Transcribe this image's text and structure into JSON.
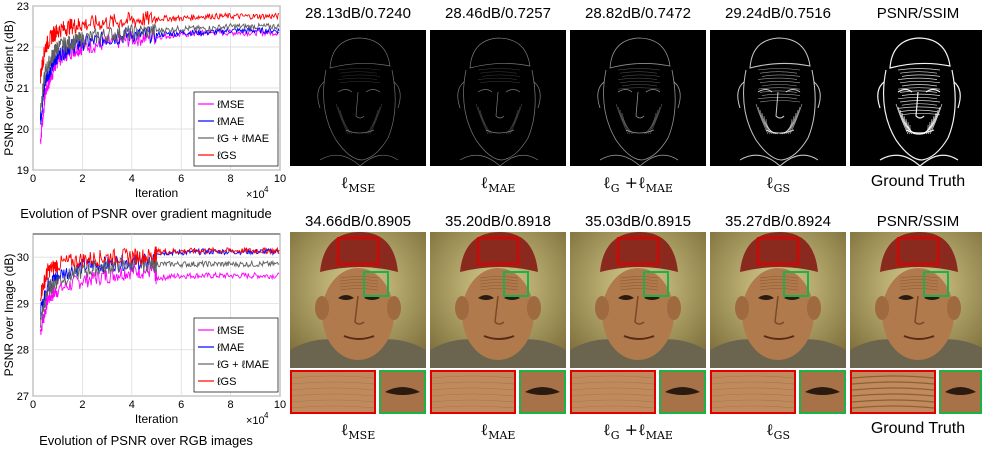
{
  "chart_data": [
    {
      "type": "line",
      "ylabel": "PSNR over Gradient (dB)",
      "xlabel": "Iteration",
      "x_multiplier": "×10",
      "x_exponent": "4",
      "xlim": [
        0,
        10
      ],
      "ylim": [
        19,
        23
      ],
      "xticks": [
        "0",
        "2",
        "4",
        "6",
        "8",
        "10"
      ],
      "yticks": [
        "19",
        "20",
        "21",
        "22",
        "23"
      ],
      "legend_position": "lower-right",
      "grid": true,
      "series": [
        {
          "name": "ℓMSE",
          "color": "#ff00ff",
          "x": [
            0.3,
            0.5,
            0.8,
            1.0,
            1.5,
            2.0,
            3.0,
            4.0,
            5.0,
            6.0,
            7.0,
            8.0,
            9.0,
            10.0
          ],
          "y": [
            19.7,
            20.9,
            21.4,
            21.7,
            21.9,
            22.0,
            22.1,
            22.2,
            22.25,
            22.3,
            22.35,
            22.35,
            22.35,
            22.35
          ]
        },
        {
          "name": "ℓMAE",
          "color": "#0000ff",
          "x": [
            0.3,
            0.5,
            0.8,
            1.0,
            1.5,
            2.0,
            3.0,
            4.0,
            5.0,
            6.0,
            7.0,
            8.0,
            9.0,
            10.0
          ],
          "y": [
            20.2,
            21.2,
            21.6,
            21.8,
            22.0,
            22.1,
            22.2,
            22.3,
            22.3,
            22.35,
            22.35,
            22.4,
            22.4,
            22.4
          ]
        },
        {
          "name": "ℓG + ℓMAE",
          "color": "#606060",
          "x": [
            0.3,
            0.5,
            0.8,
            1.0,
            1.5,
            2.0,
            3.0,
            4.0,
            5.0,
            6.0,
            7.0,
            8.0,
            9.0,
            10.0
          ],
          "y": [
            20.5,
            21.4,
            21.8,
            22.0,
            22.1,
            22.2,
            22.3,
            22.35,
            22.4,
            22.45,
            22.45,
            22.5,
            22.5,
            22.5
          ]
        },
        {
          "name": "ℓGS",
          "color": "#ff0000",
          "x": [
            0.3,
            0.5,
            0.8,
            1.0,
            1.5,
            2.0,
            3.0,
            4.0,
            5.0,
            6.0,
            7.0,
            8.0,
            9.0,
            10.0
          ],
          "y": [
            21.3,
            22.0,
            22.3,
            22.4,
            22.5,
            22.55,
            22.6,
            22.65,
            22.7,
            22.7,
            22.75,
            22.75,
            22.75,
            22.75
          ]
        }
      ]
    },
    {
      "type": "line",
      "ylabel": "PSNR over Image (dB)",
      "xlabel": "Iteration",
      "x_multiplier": "×10",
      "x_exponent": "4",
      "xlim": [
        0,
        10
      ],
      "ylim": [
        27,
        30.5
      ],
      "xticks": [
        "0",
        "2",
        "4",
        "6",
        "8",
        "10"
      ],
      "yticks": [
        "27",
        "28",
        "29",
        "30"
      ],
      "legend_position": "lower-right",
      "grid": true,
      "series": [
        {
          "name": "ℓMSE",
          "color": "#ff00ff",
          "x": [
            0.3,
            0.6,
            1.0,
            2.0,
            3.0,
            4.0,
            4.9,
            5.0,
            6.0,
            7.0,
            8.0,
            9.0,
            10.0
          ],
          "y": [
            28.4,
            29.1,
            29.3,
            29.5,
            29.6,
            29.7,
            29.7,
            29.55,
            29.6,
            29.6,
            29.6,
            29.6,
            29.6
          ]
        },
        {
          "name": "ℓMAE",
          "color": "#0000ff",
          "x": [
            0.3,
            0.6,
            1.0,
            2.0,
            3.0,
            4.0,
            4.9,
            5.0,
            6.0,
            7.0,
            8.0,
            9.0,
            10.0
          ],
          "y": [
            28.8,
            29.4,
            29.6,
            29.8,
            29.85,
            29.9,
            29.9,
            30.1,
            30.1,
            30.12,
            30.12,
            30.12,
            30.12
          ]
        },
        {
          "name": "ℓG + ℓMAE",
          "color": "#606060",
          "x": [
            0.3,
            0.6,
            1.0,
            2.0,
            3.0,
            4.0,
            4.9,
            5.0,
            6.0,
            7.0,
            8.0,
            9.0,
            10.0
          ],
          "y": [
            28.6,
            29.3,
            29.5,
            29.7,
            29.8,
            29.85,
            29.85,
            29.85,
            29.85,
            29.85,
            29.85,
            29.85,
            29.85
          ]
        },
        {
          "name": "ℓGS",
          "color": "#ff0000",
          "x": [
            0.3,
            0.6,
            1.0,
            2.0,
            3.0,
            4.0,
            4.9,
            5.0,
            6.0,
            7.0,
            8.0,
            9.0,
            10.0
          ],
          "y": [
            29.2,
            29.7,
            29.85,
            29.95,
            30.0,
            30.02,
            30.02,
            30.12,
            30.13,
            30.14,
            30.14,
            30.14,
            30.14
          ]
        }
      ]
    }
  ],
  "captions": {
    "gradient_plot": "Evolution of PSNR over gradient magnitude",
    "image_plot": "Evolution of PSNR over RGB images"
  },
  "top_row": {
    "metrics": [
      "28.13dB/0.7240",
      "28.46dB/0.7257",
      "28.82dB/0.7472",
      "29.24dB/0.7516",
      "PSNR/SSIM"
    ]
  },
  "bottom_row": {
    "metrics": [
      "34.66dB/0.8905",
      "35.20dB/0.8918",
      "35.03dB/0.8915",
      "35.27dB/0.8924",
      "PSNR/SSIM"
    ]
  },
  "method_labels": {
    "l": "ℓ",
    "mse": "MSE",
    "mae": "MAE",
    "g": "G",
    "plus": " +",
    "gs": "GS",
    "ground_truth": "Ground Truth"
  },
  "colors": {
    "red_box": "#e00000",
    "green_box": "#1db14a"
  }
}
